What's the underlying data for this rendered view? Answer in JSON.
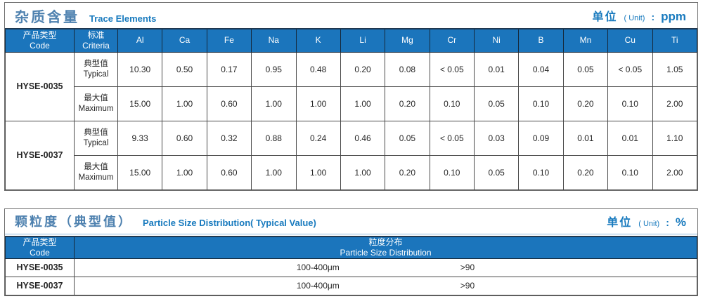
{
  "colors": {
    "header_bg": "#1b75bc",
    "accent_blue": "#187abe",
    "title_blue": "#4e81af",
    "panel_border": "#6f6f6f",
    "grid_border": "#4a4a4a",
    "title_rule_blue": "#90badd"
  },
  "trace_table": {
    "title_cn": "杂质含量",
    "title_en": "Trace Elements",
    "unit": {
      "label_cn": "单位",
      "label_en": "( Unit)",
      "colon": ":",
      "value": "ppm"
    },
    "col_headers": {
      "code_cn": "产品类型",
      "code_en": "Code",
      "criteria_cn": "标准",
      "criteria_en": "Criteria"
    },
    "elements": [
      "Al",
      "Ca",
      "Fe",
      "Na",
      "K",
      "Li",
      "Mg",
      "Cr",
      "Ni",
      "B",
      "Mn",
      "Cu",
      "Ti"
    ],
    "products": [
      {
        "code": "HYSE-0035",
        "rows": [
          {
            "criteria_cn": "典型值",
            "criteria_en": "Typical",
            "values": [
              "10.30",
              "0.50",
              "0.17",
              "0.95",
              "0.48",
              "0.20",
              "0.08",
              "< 0.05",
              "0.01",
              "0.04",
              "0.05",
              "< 0.05",
              "1.05"
            ]
          },
          {
            "criteria_cn": "最大值",
            "criteria_en": "Maximum",
            "values": [
              "15.00",
              "1.00",
              "0.60",
              "1.00",
              "1.00",
              "1.00",
              "0.20",
              "0.10",
              "0.05",
              "0.10",
              "0.20",
              "0.10",
              "2.00"
            ]
          }
        ]
      },
      {
        "code": "HYSE-0037",
        "rows": [
          {
            "criteria_cn": "典型值",
            "criteria_en": "Typical",
            "values": [
              "9.33",
              "0.60",
              "0.32",
              "0.88",
              "0.24",
              "0.46",
              "0.05",
              "< 0.05",
              "0.03",
              "0.09",
              "0.01",
              "0.01",
              "1.10"
            ]
          },
          {
            "criteria_cn": "最大值",
            "criteria_en": "Maximum",
            "values": [
              "15.00",
              "1.00",
              "0.60",
              "1.00",
              "1.00",
              "1.00",
              "0.20",
              "0.10",
              "0.05",
              "0.10",
              "0.20",
              "0.10",
              "2.00"
            ]
          }
        ]
      }
    ]
  },
  "particle_table": {
    "title_cn": "颗粒度（典型值）",
    "title_en": "Particle Size Distribution( Typical Value)",
    "unit": {
      "label_cn": "单位",
      "label_en": "( Unit)",
      "colon": ":",
      "value": "%"
    },
    "col_headers": {
      "code_cn": "产品类型",
      "code_en": "Code",
      "dist_cn": "粒度分布",
      "dist_en": "Particle Size Distribution"
    },
    "rows": [
      {
        "code": "HYSE-0035",
        "range": "100-400μm",
        "value": ">90"
      },
      {
        "code": "HYSE-0037",
        "range": "100-400μm",
        "value": ">90"
      }
    ]
  }
}
